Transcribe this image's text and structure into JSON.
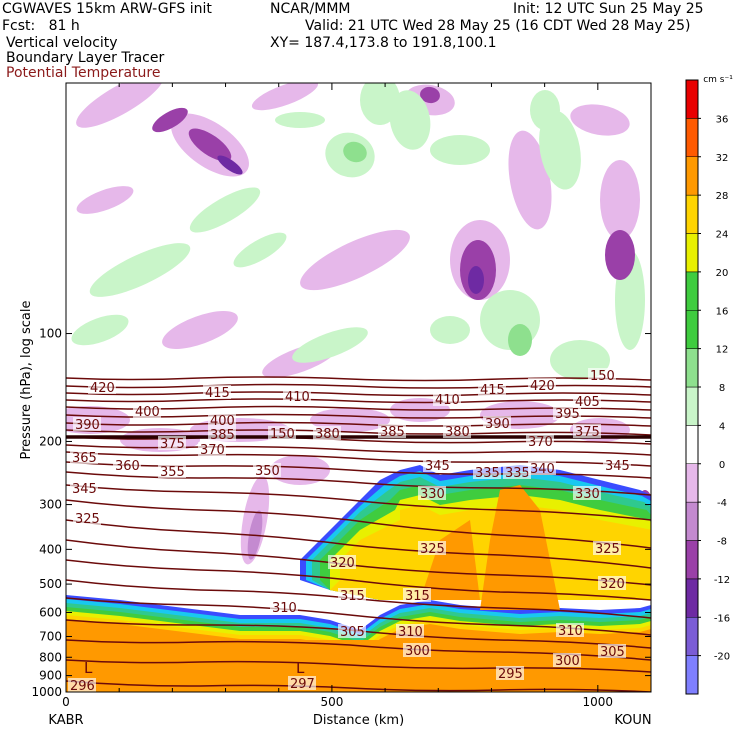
{
  "header": {
    "model_line": "CGWAVES 15km ARW-GFS init",
    "fcst_line": "Fcst:   81 h",
    "field_1": "Vertical velocity",
    "field_2": "Boundary Layer Tracer",
    "field_3": "Potential Temperature",
    "org": "NCAR/MMM",
    "init": "Init: 12 UTC Sun 25 May 25",
    "valid": "Valid: 21 UTC Wed 28 May 25 (16 CDT Wed 28 May 25)",
    "xy": "XY= 187.4,173.8 to 191.8,100.1"
  },
  "chart_data": {
    "type": "heatmap",
    "title": "Vertical velocity cross-section",
    "xlabel": "Distance (km)",
    "ylabel": "Pressure (hPa), log scale",
    "xlim": [
      0,
      1100
    ],
    "ylim": [
      1000,
      20
    ],
    "y_scale": "log",
    "x_ticks": [
      0,
      500,
      1000
    ],
    "y_ticks": [
      100,
      200,
      300,
      400,
      500,
      600,
      700,
      800,
      900,
      1000
    ],
    "endpoint_labels": {
      "left": "KABR",
      "right": "KOUN"
    },
    "colorbar": {
      "unit": "cm s⁻¹",
      "levels": [
        -20,
        -16,
        -12,
        -8,
        -4,
        0,
        4,
        8,
        12,
        16,
        20,
        24,
        28,
        32,
        36
      ],
      "colors": [
        "#7f7fff",
        "#7b5cd6",
        "#6e2aa3",
        "#9a40a8",
        "#c48ad0",
        "#e6b8ea",
        "#ffffff",
        "#c9f5c9",
        "#8ee08e",
        "#3fcc3f",
        "#3fcc3f",
        "#e8f000",
        "#ffd400",
        "#ff9900",
        "#ff5a00",
        "#e80000"
      ]
    },
    "isentropes": {
      "series_label": "Potential Temperature (K)",
      "values": [
        295,
        296,
        297,
        300,
        305,
        310,
        315,
        320,
        325,
        330,
        335,
        340,
        345,
        350,
        355,
        360,
        365,
        370,
        375,
        380,
        385,
        390,
        395,
        400,
        405,
        410,
        415,
        420
      ],
      "labels_shown": [
        "296",
        "297",
        "295",
        "300",
        "300",
        "305",
        "305",
        "310",
        "310",
        "310",
        "315",
        "315",
        "320",
        "320",
        "325",
        "325",
        "325",
        "330",
        "330",
        "335",
        "335",
        "340",
        "345",
        "345",
        "345",
        "350",
        "355",
        "360",
        "365",
        "370",
        "370",
        "375",
        "375",
        "380",
        "380",
        "385",
        "385",
        "390",
        "390",
        "395",
        "400",
        "400",
        "405",
        "410",
        "410",
        "415",
        "415",
        "420",
        "420",
        "150",
        "150"
      ]
    },
    "surface_lows": [
      "L",
      "L"
    ]
  }
}
